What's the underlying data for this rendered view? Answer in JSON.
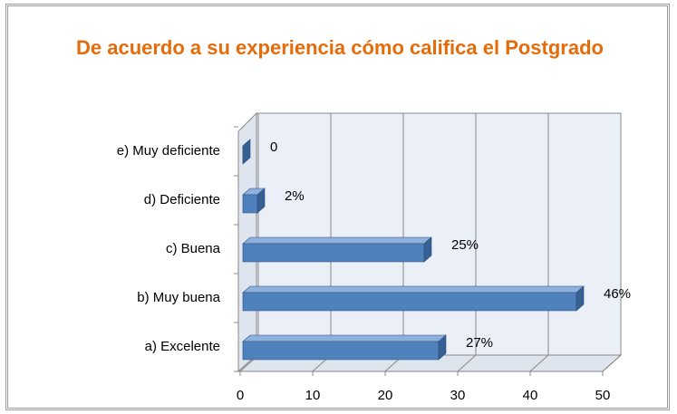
{
  "chart_data": {
    "type": "bar",
    "orientation": "horizontal",
    "title": "De acuerdo a su experiencia cómo  califica el Postgrado",
    "categories": [
      "a) Excelente",
      "b) Muy buena",
      "c) Buena",
      "d) Deficiente",
      "e) Muy deficiente"
    ],
    "values": [
      27,
      46,
      25,
      2,
      0
    ],
    "value_labels": [
      "27%",
      "46%",
      "25%",
      "2%",
      "0"
    ],
    "color": "#4f81bd",
    "xlim": [
      0,
      50
    ],
    "xticks": [
      0,
      10,
      20,
      30,
      40,
      50
    ],
    "grid": true
  }
}
